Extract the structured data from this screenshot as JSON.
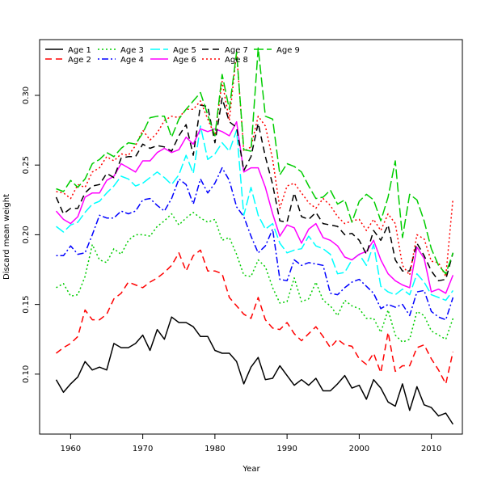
{
  "chart_data": {
    "type": "line",
    "title": "",
    "xlabel": "Year",
    "ylabel": "Discard mean weight",
    "xlim": [
      1955.7,
      2014.3
    ],
    "ylim": [
      0.057,
      0.34
    ],
    "xticks": [
      1960,
      1970,
      1980,
      1990,
      2000,
      2010
    ],
    "yticks": [
      0.1,
      0.15,
      0.2,
      0.25,
      0.3
    ],
    "ytick_labels": [
      "0.10",
      "0.15",
      "0.20",
      "0.25",
      "0.30"
    ],
    "legend_position": "top-left",
    "grid": false,
    "x": [
      1958,
      1959,
      1960,
      1961,
      1962,
      1963,
      1964,
      1965,
      1966,
      1967,
      1968,
      1969,
      1970,
      1971,
      1972,
      1973,
      1974,
      1975,
      1976,
      1977,
      1978,
      1979,
      1980,
      1981,
      1982,
      1983,
      1984,
      1985,
      1986,
      1987,
      1988,
      1989,
      1990,
      1991,
      1992,
      1993,
      1994,
      1995,
      1996,
      1997,
      1998,
      1999,
      2000,
      2001,
      2002,
      2003,
      2004,
      2005,
      2006,
      2007,
      2008,
      2009,
      2010,
      2011,
      2012,
      2013
    ],
    "series": [
      {
        "name": "Age 1",
        "color": "#000000",
        "dash": "solid",
        "values": [
          0.096,
          0.087,
          0.093,
          0.098,
          0.109,
          0.103,
          0.105,
          0.103,
          0.122,
          0.119,
          0.119,
          0.122,
          0.128,
          0.117,
          0.132,
          0.125,
          0.141,
          0.137,
          0.137,
          0.134,
          0.127,
          0.127,
          0.117,
          0.115,
          0.115,
          0.109,
          0.093,
          0.105,
          0.112,
          0.096,
          0.097,
          0.106,
          0.099,
          0.092,
          0.096,
          0.092,
          0.097,
          0.088,
          0.088,
          0.093,
          0.099,
          0.09,
          0.092,
          0.082,
          0.096,
          0.09,
          0.08,
          0.077,
          0.093,
          0.074,
          0.091,
          0.078,
          0.076,
          0.07,
          0.072,
          0.064
        ]
      },
      {
        "name": "Age 2",
        "color": "#ff0000",
        "dash": "dashed",
        "values": [
          0.115,
          0.119,
          0.122,
          0.127,
          0.146,
          0.139,
          0.139,
          0.143,
          0.154,
          0.158,
          0.166,
          0.164,
          0.162,
          0.166,
          0.169,
          0.173,
          0.178,
          0.187,
          0.174,
          0.185,
          0.189,
          0.174,
          0.174,
          0.172,
          0.155,
          0.149,
          0.143,
          0.14,
          0.155,
          0.139,
          0.133,
          0.132,
          0.137,
          0.129,
          0.124,
          0.129,
          0.134,
          0.127,
          0.119,
          0.125,
          0.121,
          0.12,
          0.111,
          0.107,
          0.115,
          0.101,
          0.13,
          0.102,
          0.106,
          0.106,
          0.119,
          0.121,
          0.111,
          0.103,
          0.093,
          0.116
        ]
      },
      {
        "name": "Age 3",
        "color": "#00cd00",
        "dash": "dotted",
        "values": [
          0.162,
          0.165,
          0.156,
          0.157,
          0.17,
          0.193,
          0.182,
          0.18,
          0.19,
          0.186,
          0.196,
          0.2,
          0.2,
          0.199,
          0.206,
          0.21,
          0.215,
          0.207,
          0.212,
          0.216,
          0.212,
          0.209,
          0.211,
          0.196,
          0.198,
          0.186,
          0.171,
          0.17,
          0.182,
          0.177,
          0.162,
          0.151,
          0.152,
          0.169,
          0.152,
          0.154,
          0.166,
          0.153,
          0.149,
          0.142,
          0.153,
          0.149,
          0.147,
          0.14,
          0.14,
          0.13,
          0.146,
          0.128,
          0.123,
          0.125,
          0.145,
          0.142,
          0.131,
          0.128,
          0.125,
          0.14
        ]
      },
      {
        "name": "Age 4",
        "color": "#0000ff",
        "dash": "dashdot",
        "values": [
          0.185,
          0.185,
          0.192,
          0.186,
          0.187,
          0.2,
          0.214,
          0.212,
          0.212,
          0.217,
          0.215,
          0.217,
          0.225,
          0.226,
          0.221,
          0.217,
          0.226,
          0.24,
          0.236,
          0.222,
          0.24,
          0.23,
          0.237,
          0.248,
          0.239,
          0.22,
          0.213,
          0.199,
          0.187,
          0.192,
          0.204,
          0.168,
          0.167,
          0.182,
          0.178,
          0.18,
          0.179,
          0.178,
          0.158,
          0.157,
          0.162,
          0.166,
          0.168,
          0.163,
          0.158,
          0.147,
          0.15,
          0.148,
          0.15,
          0.142,
          0.159,
          0.16,
          0.145,
          0.141,
          0.139,
          0.155
        ]
      },
      {
        "name": "Age 5",
        "color": "#00ffff",
        "dash": "longdash",
        "values": [
          0.206,
          0.202,
          0.207,
          0.209,
          0.216,
          0.222,
          0.224,
          0.23,
          0.235,
          0.242,
          0.24,
          0.235,
          0.237,
          0.241,
          0.245,
          0.241,
          0.236,
          0.243,
          0.257,
          0.244,
          0.278,
          0.254,
          0.258,
          0.266,
          0.26,
          0.275,
          0.214,
          0.234,
          0.214,
          0.204,
          0.208,
          0.194,
          0.187,
          0.189,
          0.19,
          0.199,
          0.192,
          0.19,
          0.186,
          0.172,
          0.173,
          0.182,
          0.186,
          0.178,
          0.193,
          0.163,
          0.159,
          0.157,
          0.161,
          0.157,
          0.172,
          0.166,
          0.157,
          0.155,
          0.153,
          0.16
        ]
      },
      {
        "name": "Age 6",
        "color": "#ff00ff",
        "dash": "solid",
        "values": [
          0.217,
          0.211,
          0.208,
          0.213,
          0.227,
          0.23,
          0.23,
          0.239,
          0.242,
          0.251,
          0.248,
          0.245,
          0.253,
          0.253,
          0.259,
          0.262,
          0.259,
          0.261,
          0.27,
          0.265,
          0.276,
          0.274,
          0.276,
          0.274,
          0.271,
          0.281,
          0.245,
          0.248,
          0.248,
          0.234,
          0.215,
          0.199,
          0.207,
          0.205,
          0.194,
          0.204,
          0.208,
          0.198,
          0.196,
          0.192,
          0.184,
          0.182,
          0.186,
          0.188,
          0.196,
          0.182,
          0.172,
          0.167,
          0.164,
          0.162,
          0.191,
          0.183,
          0.159,
          0.161,
          0.158,
          0.171
        ]
      },
      {
        "name": "Age 7",
        "color": "#000000",
        "dash": "dashed",
        "values": [
          0.227,
          0.215,
          0.219,
          0.219,
          0.23,
          0.235,
          0.236,
          0.244,
          0.241,
          0.255,
          0.256,
          0.256,
          0.265,
          0.262,
          0.264,
          0.263,
          0.26,
          0.271,
          0.279,
          0.257,
          0.293,
          0.292,
          0.266,
          0.298,
          0.281,
          0.277,
          0.246,
          0.256,
          0.28,
          0.256,
          0.236,
          0.21,
          0.209,
          0.23,
          0.213,
          0.211,
          0.216,
          0.208,
          0.207,
          0.206,
          0.2,
          0.201,
          0.196,
          0.186,
          0.203,
          0.196,
          0.207,
          0.182,
          0.174,
          0.174,
          0.194,
          0.185,
          0.174,
          0.167,
          0.168,
          0.187
        ]
      },
      {
        "name": "Age 8",
        "color": "#ff0000",
        "dash": "dotted",
        "values": [
          0.231,
          0.23,
          0.226,
          0.236,
          0.234,
          0.245,
          0.248,
          0.256,
          0.253,
          0.258,
          0.257,
          0.264,
          0.275,
          0.268,
          0.273,
          0.282,
          0.285,
          0.284,
          0.29,
          0.29,
          0.296,
          0.283,
          0.271,
          0.31,
          0.282,
          0.331,
          0.26,
          0.263,
          0.285,
          0.278,
          0.254,
          0.219,
          0.235,
          0.237,
          0.23,
          0.223,
          0.219,
          0.226,
          0.221,
          0.213,
          0.208,
          0.21,
          0.211,
          0.203,
          0.211,
          0.203,
          0.215,
          0.208,
          0.178,
          0.171,
          0.2,
          0.197,
          0.181,
          0.18,
          0.17,
          0.226
        ]
      },
      {
        "name": "Age 9",
        "color": "#00cd00",
        "dash": "longdash",
        "values": [
          0.233,
          0.231,
          0.239,
          0.234,
          0.24,
          0.251,
          0.254,
          0.259,
          0.256,
          0.262,
          0.266,
          0.265,
          0.273,
          0.284,
          0.285,
          0.285,
          0.27,
          0.283,
          0.29,
          0.296,
          0.302,
          0.286,
          0.271,
          0.315,
          0.29,
          0.331,
          0.261,
          0.26,
          0.334,
          0.285,
          0.283,
          0.243,
          0.251,
          0.249,
          0.245,
          0.235,
          0.226,
          0.227,
          0.232,
          0.222,
          0.225,
          0.209,
          0.224,
          0.229,
          0.225,
          0.21,
          0.227,
          0.253,
          0.198,
          0.229,
          0.225,
          0.21,
          0.19,
          0.178,
          0.172,
          0.187
        ]
      }
    ]
  }
}
